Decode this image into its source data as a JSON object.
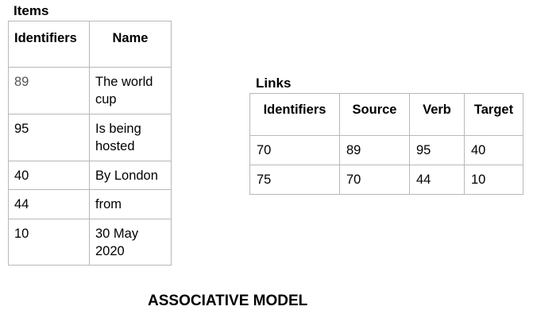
{
  "items": {
    "title": "Items",
    "headers": [
      "Identifiers",
      "Name"
    ],
    "rows": [
      {
        "id": "89",
        "name": "The world cup"
      },
      {
        "id": "95",
        "name": "Is being hosted"
      },
      {
        "id": "40",
        "name": "By London"
      },
      {
        "id": "44",
        "name": "from"
      },
      {
        "id": "10",
        "name": "30 May 2020"
      }
    ]
  },
  "links": {
    "title": "Links",
    "headers": [
      "Identifiers",
      "Source",
      "Verb",
      "Target"
    ],
    "rows": [
      [
        "70",
        "89",
        "95",
        "40"
      ],
      [
        "75",
        "70",
        "44",
        "10"
      ]
    ]
  },
  "caption": "ASSOCIATIVE MODEL"
}
